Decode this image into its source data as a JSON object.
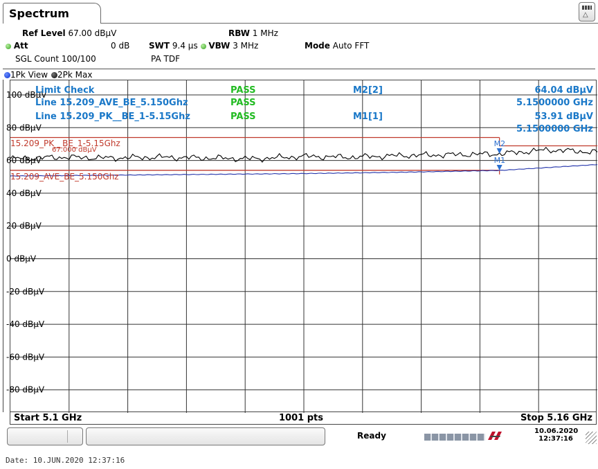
{
  "tab": {
    "title": "Spectrum"
  },
  "settings": {
    "ref_level_label": "Ref Level",
    "ref_level_value": "67.00 dBµV",
    "rbw_label": "RBW",
    "rbw_value": "1 MHz",
    "att_label": "Att",
    "att_value": "0 dB",
    "swt_label": "SWT",
    "swt_value": "9.4 µs",
    "vbw_label": "VBW",
    "vbw_value": "3 MHz",
    "mode_label": "Mode",
    "mode_value": "Auto FFT",
    "sgl_count": "SGL Count 100/100",
    "pa": "PA TDF"
  },
  "viewbar": {
    "trace1": "1Pk View",
    "trace2": "2Pk Max"
  },
  "limit_check": {
    "title": "Limit Check",
    "title_result": "PASS",
    "line1": "Line 15.209_AVE_BE_5.150Ghz",
    "line1_result": "PASS",
    "line2": "Line 15.209_PK__BE_1-5.15Ghz",
    "line2_result": "PASS"
  },
  "markers": {
    "m2_label": "M2[2]",
    "m2_level": "64.04 dBµV",
    "m2_freq": "5.1500000 GHz",
    "m1_label": "M1[1]",
    "m1_level": "53.91 dBµV",
    "m1_freq": "5.1500000 GHz",
    "m2_tag": "M2",
    "m1_tag": "M1"
  },
  "plot": {
    "limit_pk_label": "15.209_PK__BE_1-5.15Ghz",
    "limit_ave_label": "15.209_AVE_BE_5.150Ghz",
    "limit_pk_value_label": "67.000 dBµV",
    "y_labels": [
      "100 dBµV",
      "80 dBµV",
      "60 dBµV",
      "40 dBµV",
      "20 dBµV",
      "0 dBµV",
      "-20 dBµV",
      "-40 dBµV",
      "-60 dBµV",
      "-80 dBµV"
    ]
  },
  "axis": {
    "start": "Start 5.1 GHz",
    "points": "1001 pts",
    "stop": "Stop 5.16 GHz"
  },
  "status": {
    "ready": "Ready",
    "date": "10.06.2020",
    "time": "12:37:16"
  },
  "footer": {
    "date_line": "Date: 10.JUN.2020  12:37:16"
  },
  "chart_data": {
    "type": "line",
    "x_start_ghz": 5.1,
    "x_stop_ghz": 5.16,
    "ylim": [
      -90,
      100
    ],
    "y_ticks": [
      100,
      80,
      60,
      40,
      20,
      0,
      -20,
      -40,
      -60,
      -80
    ],
    "limits": [
      {
        "name": "15.209_PK__BE_1-5.15Ghz",
        "value": 74,
        "x_end_ghz": 5.15
      },
      {
        "name": "15.209_AVE_BE_5.150Ghz",
        "value": 54,
        "x_end_ghz": 5.15
      }
    ],
    "series": [
      {
        "name": "1Pk View",
        "color": "#2233aa",
        "x": [
          5.1,
          5.11,
          5.12,
          5.13,
          5.14,
          5.15,
          5.16
        ],
        "y": [
          50.5,
          51.0,
          51.5,
          52.0,
          52.8,
          53.9,
          57.5
        ]
      },
      {
        "name": "2Pk Max",
        "color": "#000000",
        "x": [
          5.1,
          5.105,
          5.11,
          5.115,
          5.12,
          5.125,
          5.13,
          5.135,
          5.14,
          5.145,
          5.15,
          5.155,
          5.16
        ],
        "y": [
          61.0,
          62.0,
          61.5,
          62.0,
          61.5,
          61.0,
          62.5,
          62.0,
          63.0,
          63.5,
          64.0,
          66.5,
          65.0
        ]
      }
    ],
    "markers": [
      {
        "name": "M2",
        "x": 5.15,
        "y": 64.04
      },
      {
        "name": "M1",
        "x": 5.15,
        "y": 53.91
      }
    ]
  },
  "colors": {
    "limit_line": "#c0392b",
    "pass": "#22bb22",
    "marker_blue": "#2a6fd0",
    "limit_check_blue": "#1a78c8"
  }
}
